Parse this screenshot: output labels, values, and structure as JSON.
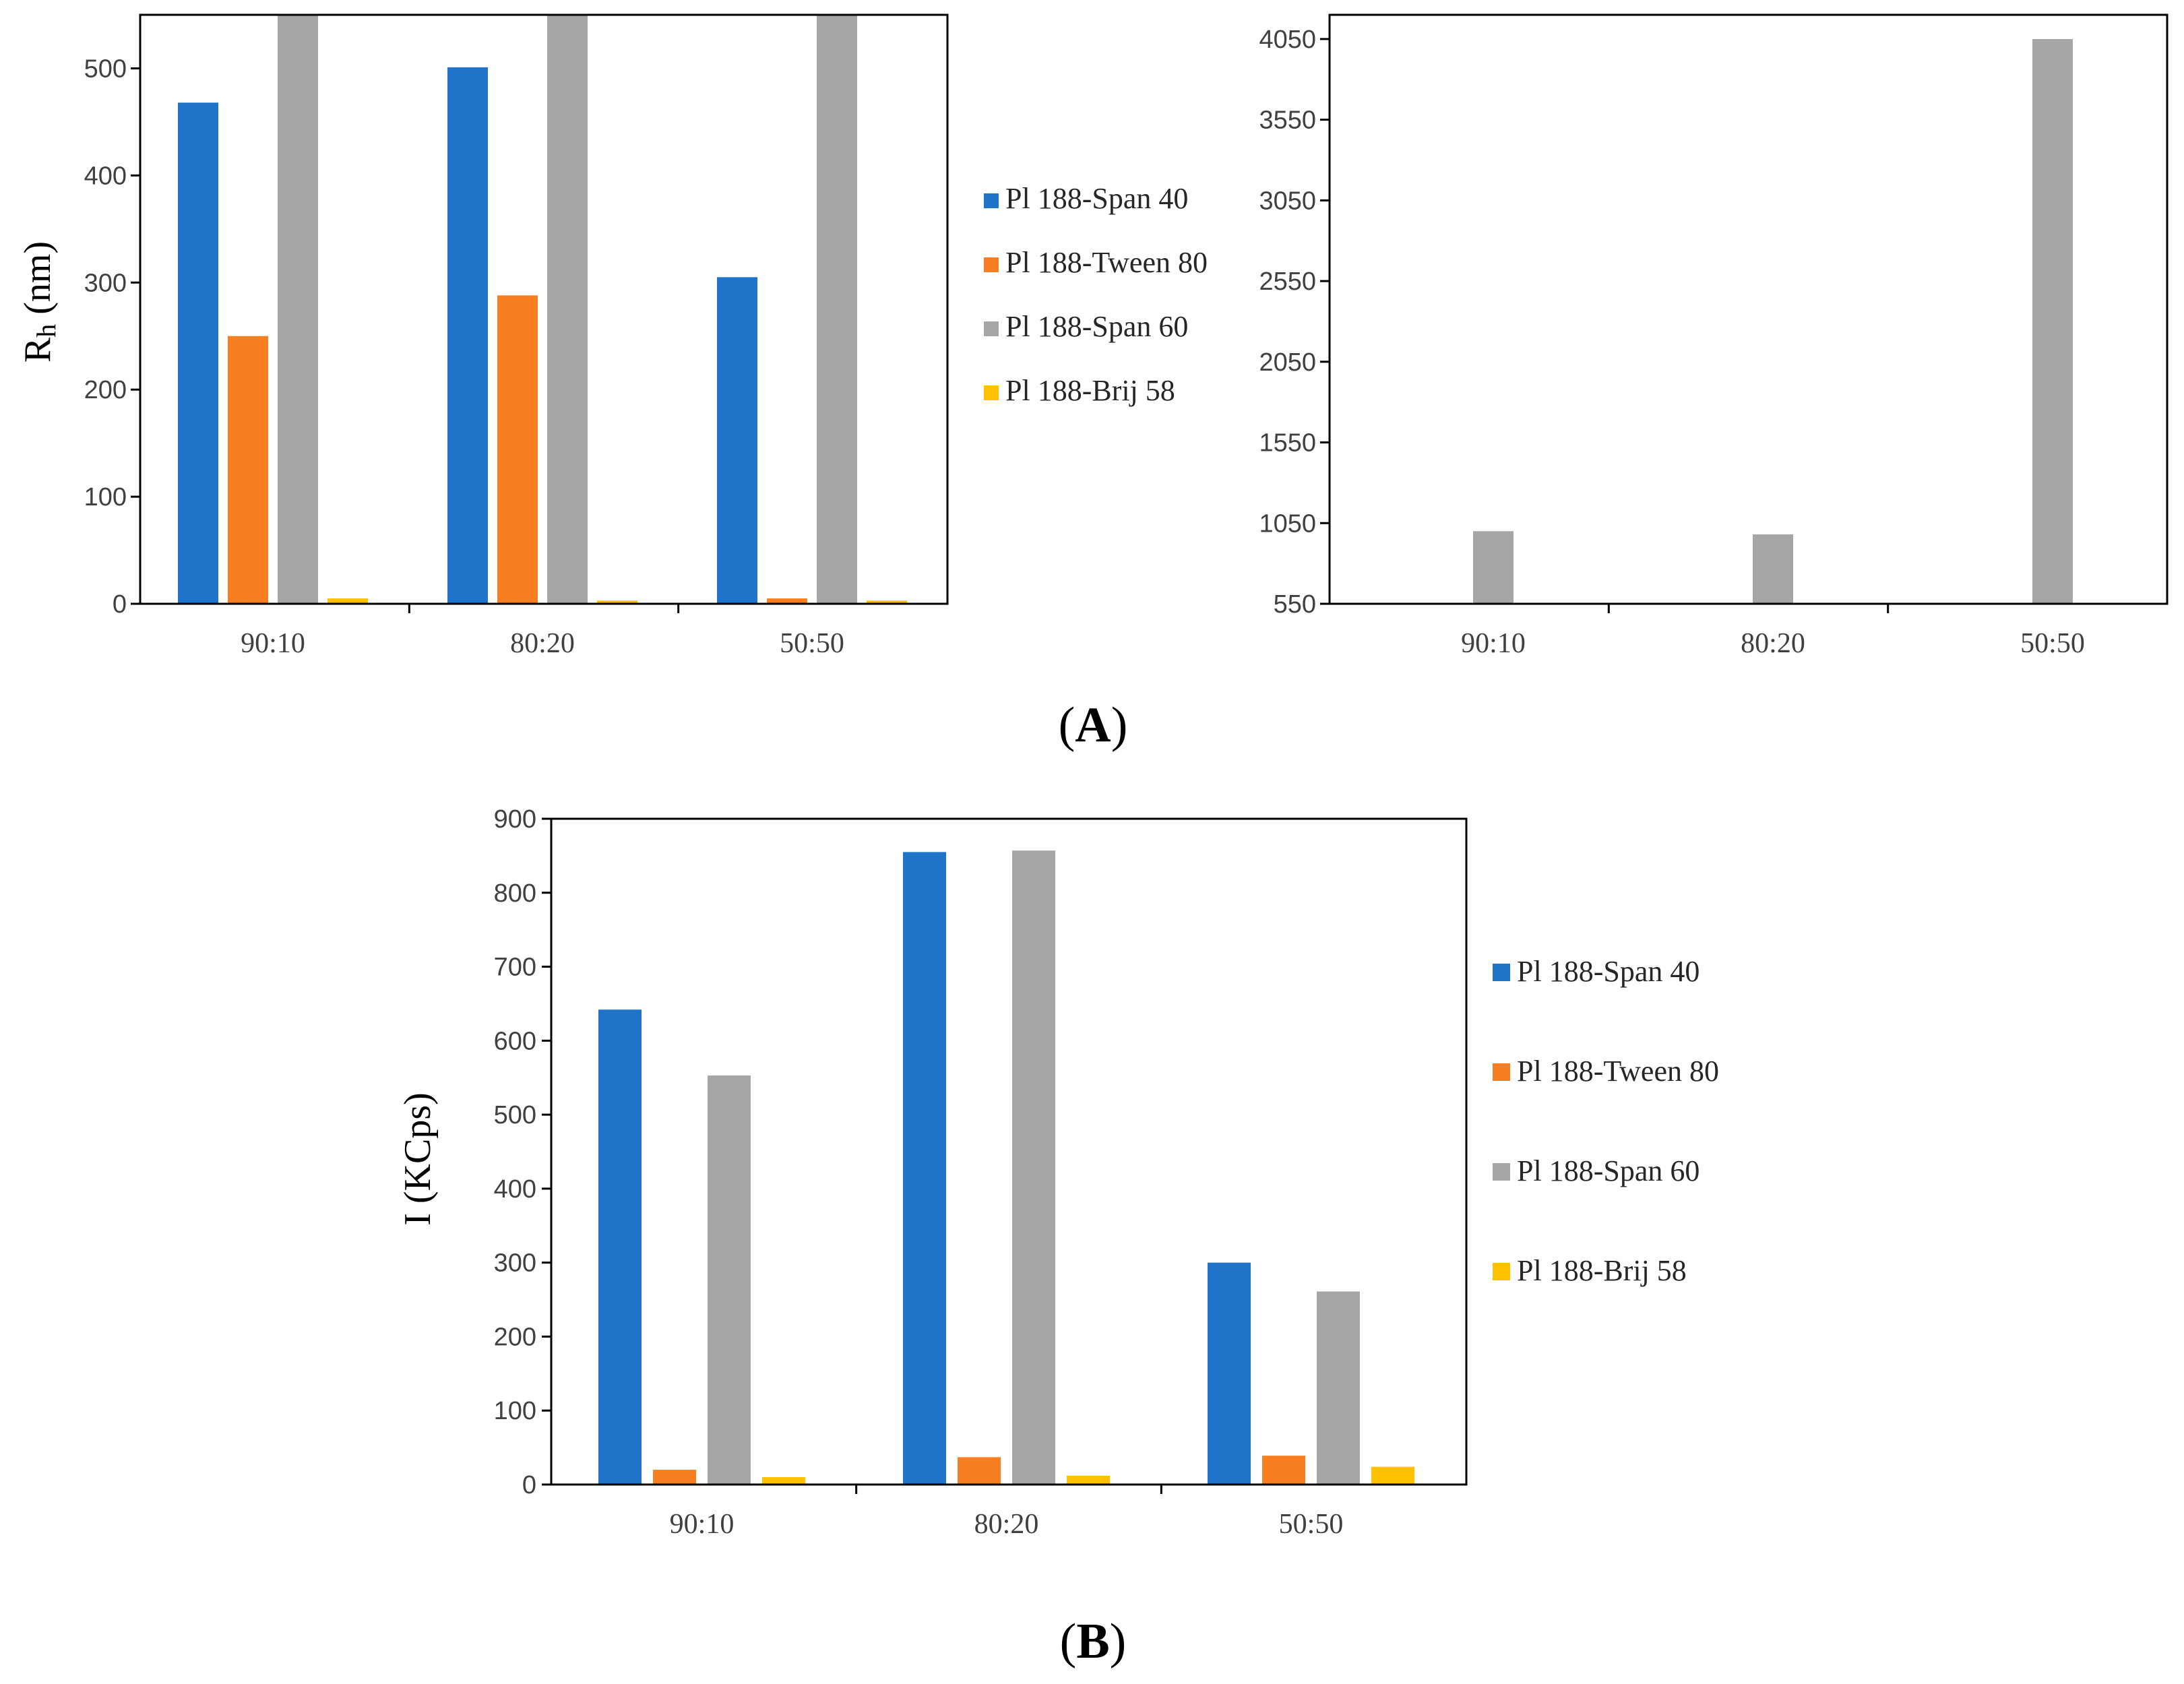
{
  "figure": {
    "panel_a_label": {
      "open": "(",
      "letter": "A",
      "close": ")"
    },
    "panel_b_label": {
      "open": "(",
      "letter": "B",
      "close": ")"
    }
  },
  "legend_entries": [
    "Pl 188-Span 40",
    "Pl 188-Tween 80",
    "Pl 188-Span 60",
    "Pl 188-Brij 58"
  ],
  "colors": {
    "Pl 188-Span 40": "#1f73c8",
    "Pl 188-Tween 80": "#f77f21",
    "Pl 188-Span 60": "#a6a6a6",
    "Pl 188-Brij 58": "#ffc000"
  },
  "chart_data": [
    {
      "id": "A-left",
      "type": "bar",
      "title": "",
      "ylabel": {
        "main": "R",
        "sub": "h",
        "unit": " (nm)"
      },
      "xlabel": "",
      "categories": [
        "90:10",
        "80:20",
        "50:50"
      ],
      "ylim": [
        0,
        550
      ],
      "yticks": [
        0,
        100,
        200,
        300,
        400,
        500
      ],
      "clipped_series": [
        "Pl 188-Span 60"
      ],
      "series": [
        {
          "name": "Pl 188-Span 40",
          "values": [
            468,
            501,
            305
          ]
        },
        {
          "name": "Pl 188-Tween 80",
          "values": [
            250,
            288,
            5
          ]
        },
        {
          "name": "Pl 188-Span 60",
          "values": [
            1000,
            980,
            4050
          ]
        },
        {
          "name": "Pl 188-Brij 58",
          "values": [
            5,
            3,
            3
          ]
        }
      ],
      "legend": "right"
    },
    {
      "id": "A-right",
      "type": "bar",
      "title": "",
      "ylabel": "",
      "xlabel": "",
      "categories": [
        "90:10",
        "80:20",
        "50:50"
      ],
      "ylim": [
        550,
        4200
      ],
      "yticks": [
        550,
        1050,
        1550,
        2050,
        2550,
        3050,
        3550,
        4050
      ],
      "series": [
        {
          "name": "Pl 188-Span 60",
          "values": [
            1000,
            980,
            4050
          ]
        }
      ]
    },
    {
      "id": "B",
      "type": "bar",
      "title": "",
      "ylabel": "I (KCps)",
      "xlabel": "",
      "categories": [
        "90:10",
        "80:20",
        "50:50"
      ],
      "ylim": [
        0,
        900
      ],
      "yticks": [
        0,
        100,
        200,
        300,
        400,
        500,
        600,
        700,
        800,
        900
      ],
      "series": [
        {
          "name": "Pl 188-Span 40",
          "values": [
            642,
            855,
            300
          ]
        },
        {
          "name": "Pl 188-Tween 80",
          "values": [
            20,
            37,
            39
          ]
        },
        {
          "name": "Pl 188-Span 60",
          "values": [
            553,
            857,
            261
          ]
        },
        {
          "name": "Pl 188-Brij 58",
          "values": [
            10,
            12,
            24
          ]
        }
      ],
      "legend": "right"
    }
  ]
}
